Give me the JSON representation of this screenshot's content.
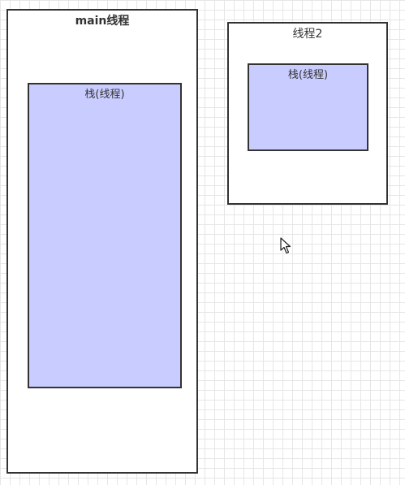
{
  "threads": [
    {
      "label": "main线程",
      "bold": true,
      "stack_label": "栈(线程)"
    },
    {
      "label": "线程2",
      "bold": false,
      "stack_label": "栈(线程)"
    }
  ],
  "colors": {
    "stack_fill": "#c9ccff",
    "border": "#333333",
    "grid_line": "#e6e6e6",
    "background": "#ffffff"
  },
  "icons": {
    "cursor": "mouse-pointer-icon"
  }
}
